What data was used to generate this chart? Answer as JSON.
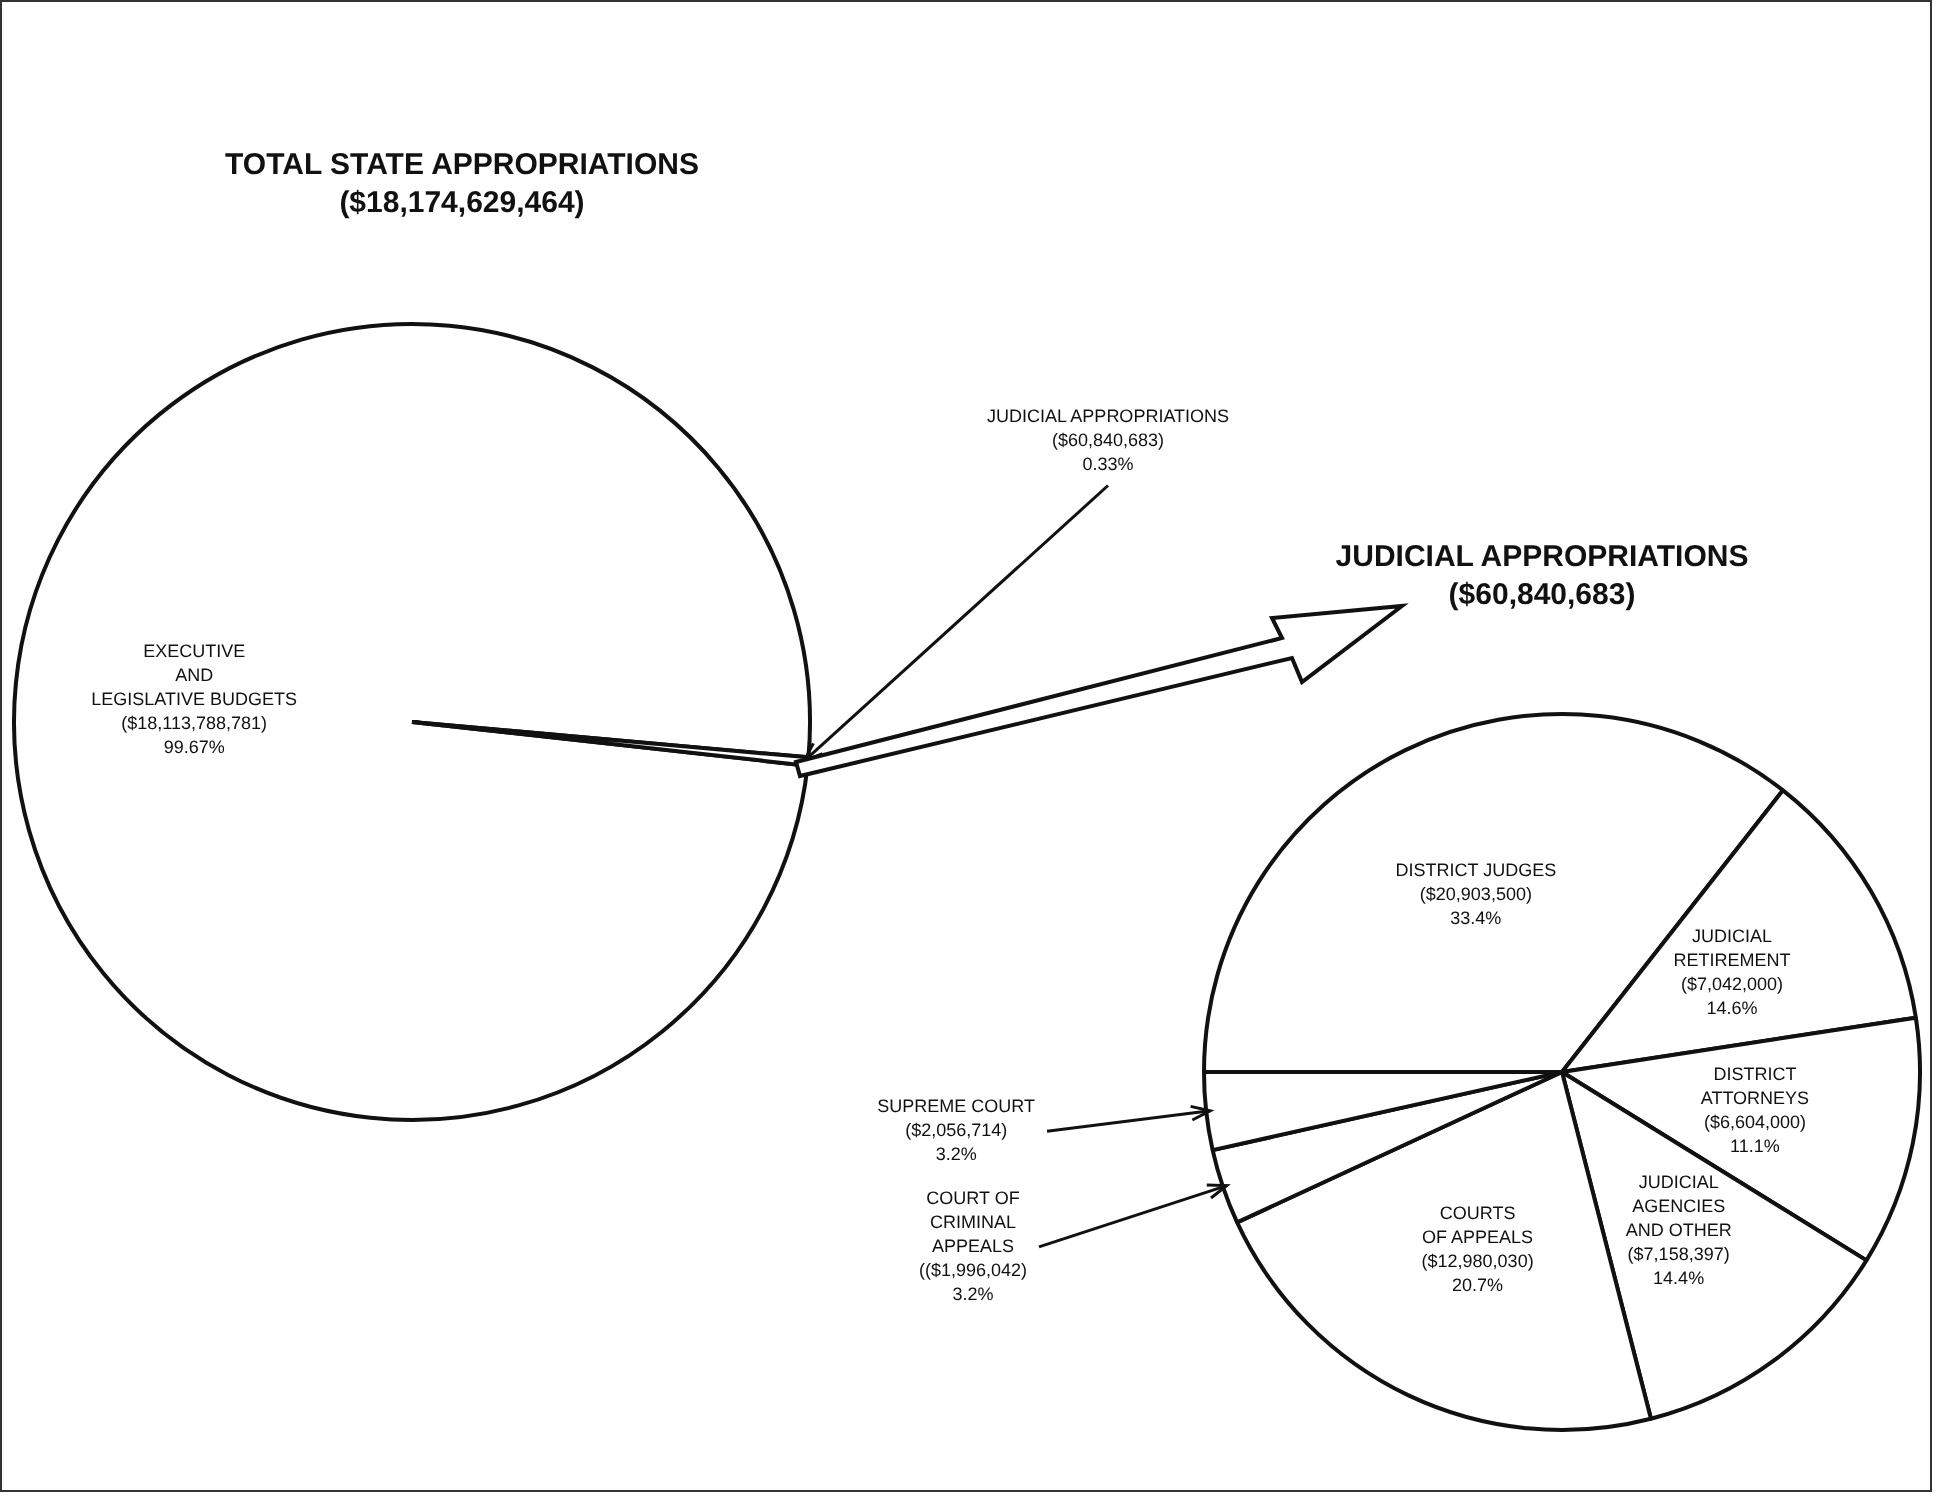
{
  "chart_data": [
    {
      "type": "pie",
      "title": "TOTAL STATE APPROPRIATIONS",
      "subtitle": "($18,174,629,464)",
      "categories": [
        "EXECUTIVE\nAND\nLEGISLATIVE BUDGETS",
        "JUDICIAL APPROPRIATIONS"
      ],
      "values": [
        18113788781,
        60840683
      ],
      "colors": [
        "#ffffff",
        "#ffffff"
      ],
      "value_labels": [
        "($18,113,788,781)\n99.67%",
        "($60,840,683)\n0.33%"
      ]
    },
    {
      "type": "pie",
      "title": "JUDICIAL APPROPRIATIONS",
      "subtitle": "($60,840,683)",
      "categories": [
        "DISTRICT JUDGES",
        "JUDICIAL\nRETIREMENT",
        "DISTRICT\nATTORNEYS",
        "JUDICIAL\nAGENCIES\nAND OTHER",
        "COURTS\nOF APPEALS",
        "COURT OF\nCRIMINAL\nAPPEALS",
        "SUPREME COURT"
      ],
      "values": [
        20903500,
        7042000,
        6604000,
        7158397,
        12980030,
        1996042,
        2056714
      ],
      "colors": [
        "#ffffff",
        "#ffffff",
        "#ffffff",
        "#ffffff",
        "#ffffff",
        "#ffffff",
        "#ffffff"
      ],
      "value_labels": [
        "($20,903,500)\n33.4%",
        "($7,042,000)\n14.6%",
        "($6,604,000)\n11.1%",
        "($7,158,397)\n14.4%",
        "($12,980,030)\n20.7%",
        "(($1,996,042)\n3.2%",
        "($2,056,714)\n3.2%"
      ]
    }
  ]
}
